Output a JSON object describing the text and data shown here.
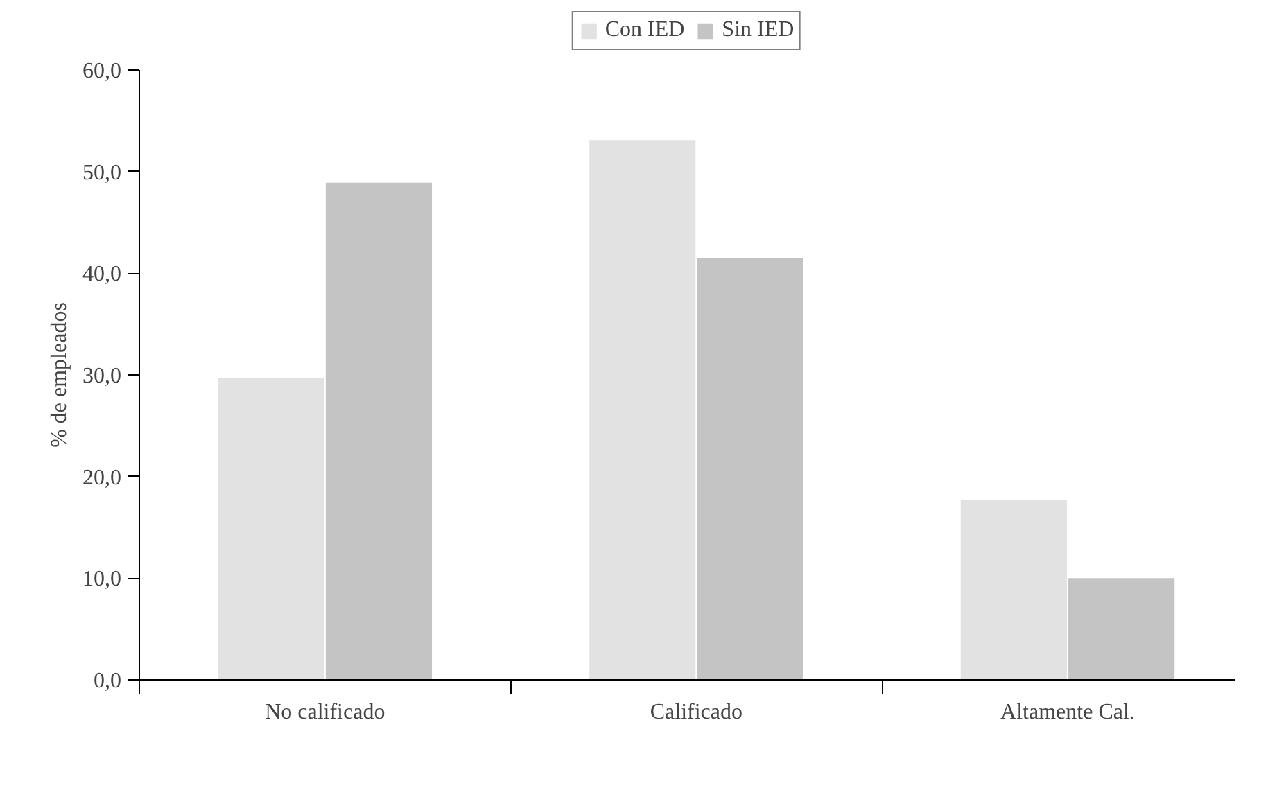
{
  "chart_data": {
    "type": "bar",
    "ylabel": "% de empleados",
    "categories": [
      "No calificado",
      "Calificado",
      "Altamente Cal."
    ],
    "series": [
      {
        "name": "Con IED",
        "color": "#e2e2e2",
        "values": [
          29.7,
          53.1,
          17.7
        ]
      },
      {
        "name": "Sin IED",
        "color": "#c4c4c4",
        "values": [
          48.9,
          41.5,
          10.0
        ]
      }
    ],
    "ylim": [
      0,
      60
    ],
    "yticks": [
      {
        "value": 0,
        "label": "0,0"
      },
      {
        "value": 10,
        "label": "10,0"
      },
      {
        "value": 20,
        "label": "20,0"
      },
      {
        "value": 30,
        "label": "30,0"
      },
      {
        "value": 40,
        "label": "40,0"
      },
      {
        "value": 50,
        "label": "50,0"
      },
      {
        "value": 60,
        "label": "60,0"
      }
    ],
    "grid": false,
    "legend": "top"
  }
}
